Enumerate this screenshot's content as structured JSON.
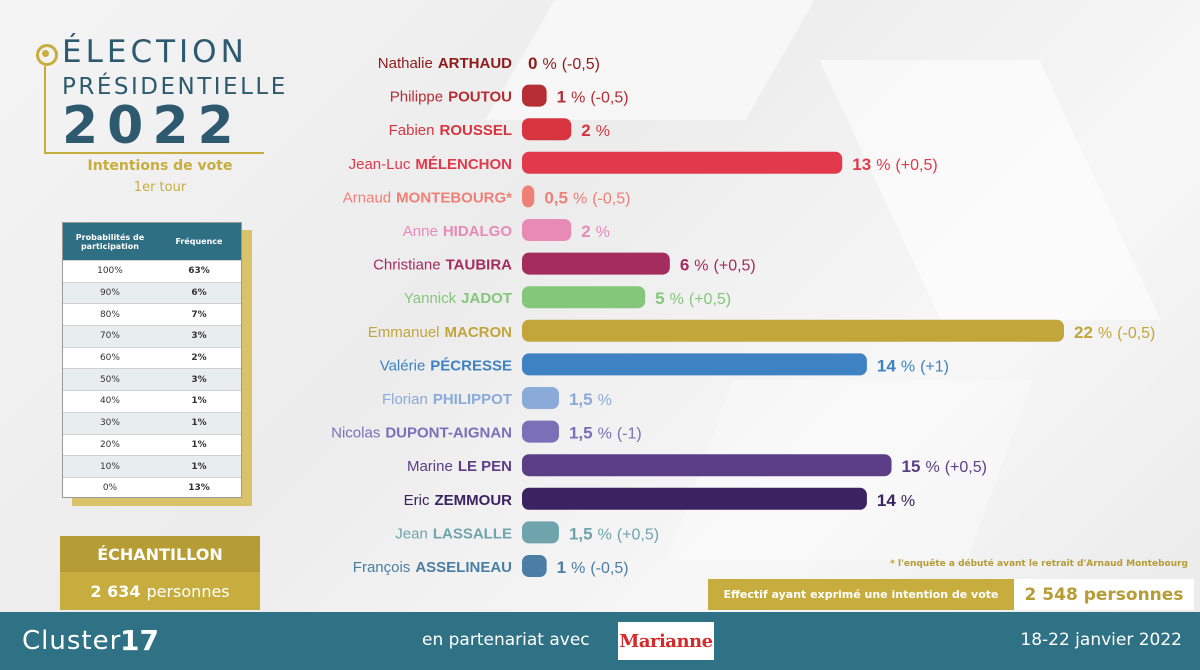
{
  "title": {
    "line1": "ÉLECTION",
    "line2": "PRÉSIDENTIELLE",
    "year": "2022",
    "subtitle": "Intentions de vote",
    "round": "1er tour"
  },
  "participation_table": {
    "headers": [
      "Probabilités de participation",
      "Fréquence"
    ],
    "rows": [
      [
        "100%",
        "63%"
      ],
      [
        "90%",
        "6%"
      ],
      [
        "80%",
        "7%"
      ],
      [
        "70%",
        "3%"
      ],
      [
        "60%",
        "2%"
      ],
      [
        "50%",
        "3%"
      ],
      [
        "40%",
        "1%"
      ],
      [
        "30%",
        "1%"
      ],
      [
        "20%",
        "1%"
      ],
      [
        "10%",
        "1%"
      ],
      [
        "0%",
        "13%"
      ]
    ]
  },
  "sample": {
    "label": "ÉCHANTILLON",
    "number": "2 634",
    "unit": "personnes"
  },
  "chart_data": {
    "type": "bar",
    "orientation": "horizontal",
    "categories": [
      {
        "first": "Nathalie",
        "last": "ARTHAUD",
        "suffix": ""
      },
      {
        "first": "Philippe",
        "last": "POUTOU",
        "suffix": ""
      },
      {
        "first": "Fabien",
        "last": "ROUSSEL",
        "suffix": ""
      },
      {
        "first": "Jean-Luc",
        "last": "MÉLENCHON",
        "suffix": ""
      },
      {
        "first": "Arnaud",
        "last": "MONTEBOURG",
        "suffix": "*"
      },
      {
        "first": "Anne",
        "last": "HIDALGO",
        "suffix": ""
      },
      {
        "first": "Christiane",
        "last": "TAUBIRA",
        "suffix": ""
      },
      {
        "first": "Yannick",
        "last": "JADOT",
        "suffix": ""
      },
      {
        "first": "Emmanuel",
        "last": "MACRON",
        "suffix": ""
      },
      {
        "first": "Valérie",
        "last": "PÉCRESSE",
        "suffix": ""
      },
      {
        "first": "Florian",
        "last": "PHILIPPOT",
        "suffix": ""
      },
      {
        "first": "Nicolas",
        "last": "DUPONT-AIGNAN",
        "suffix": ""
      },
      {
        "first": "Marine",
        "last": "LE PEN",
        "suffix": ""
      },
      {
        "first": "Eric",
        "last": "ZEMMOUR",
        "suffix": ""
      },
      {
        "first": "Jean",
        "last": "LASSALLE",
        "suffix": ""
      },
      {
        "first": "François",
        "last": "ASSELINEAU",
        "suffix": ""
      }
    ],
    "values": [
      0,
      1,
      2,
      13,
      0.5,
      2,
      6,
      5,
      22,
      14,
      1.5,
      1.5,
      15,
      14,
      1.5,
      1
    ],
    "value_labels": [
      "0",
      "1",
      "2",
      "13",
      "0,5",
      "2",
      "6",
      "5",
      "22",
      "14",
      "1,5",
      "1,5",
      "15",
      "14",
      "1,5",
      "1"
    ],
    "unit": "%",
    "changes": [
      "(-0,5)",
      "(-0,5)",
      "",
      "(+0,5)",
      "(-0,5)",
      "",
      "(+0,5)",
      "(+0,5)",
      "(-0,5)",
      "(+1)",
      "",
      "(-1)",
      "(+0,5)",
      "",
      "(+0,5)",
      "(-0,5)"
    ],
    "colors": [
      "#8e1b1b",
      "#b52e34",
      "#d8343f",
      "#e03a4c",
      "#ef8078",
      "#e88ab6",
      "#a32d5c",
      "#84c77a",
      "#c2a53b",
      "#3f82c4",
      "#8aaad9",
      "#7b6fb8",
      "#5c3e86",
      "#3a2360",
      "#6fa4ad",
      "#4b7ea4"
    ],
    "xlim": [
      0,
      22
    ],
    "grid": false
  },
  "footnote": "* l'enquête a débuté avant le retrait d'Arnaud Montebourg",
  "effectif": {
    "label": "Effectif ayant exprimé une intention de vote",
    "value": "2 548 personnes"
  },
  "footer": {
    "brand_name": "Cluster",
    "brand_number": "17",
    "partnership": "en partenariat avec",
    "partner_logo": "Marianne",
    "dates": "18-22 janvier 2022"
  }
}
